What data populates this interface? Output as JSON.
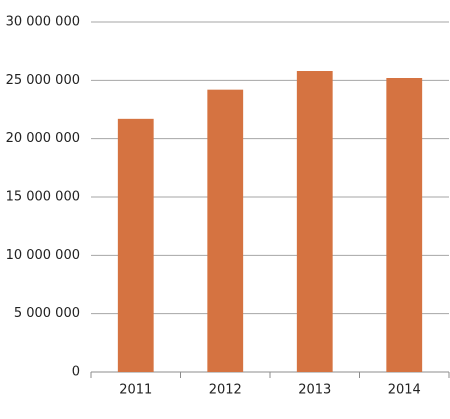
{
  "chart_data": {
    "type": "bar",
    "categories": [
      "2011",
      "2012",
      "2013",
      "2014"
    ],
    "values": [
      21700000,
      24200000,
      25800000,
      25200000
    ],
    "color": "#d57341",
    "ylim": [
      0,
      30000000
    ],
    "yticks": [
      0,
      {
        "value": 5000000,
        "label": "5 000 000"
      },
      {
        "value": 10000000,
        "label": "10 000 000"
      },
      {
        "value": 15000000,
        "label": "15 000 000"
      },
      {
        "value": 20000000,
        "label": "20 000 000"
      },
      {
        "value": 25000000,
        "label": "25 000 000"
      },
      {
        "value": 30000000,
        "label": "30 000 000"
      }
    ],
    "grid": true
  }
}
